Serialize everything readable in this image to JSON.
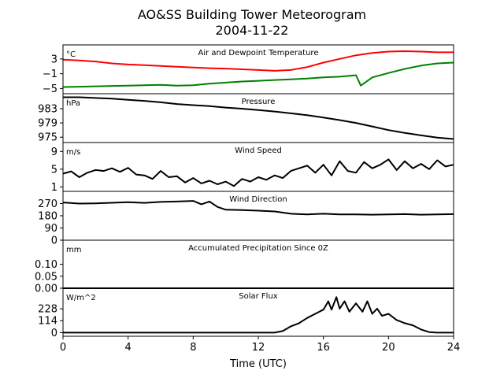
{
  "chart_data": {
    "type": "line",
    "title": "AO&SS Building Tower Meteorogram",
    "subtitle": "2004-11-22",
    "xlabel": "Time (UTC)",
    "xlim": [
      0,
      24
    ],
    "xticks": [
      "0",
      "4",
      "8",
      "12",
      "16",
      "20",
      "24"
    ],
    "panels": [
      {
        "title": "Air and Dewpoint Temperature",
        "unit": "°C",
        "ylim": [
          -6.4,
          6.8
        ],
        "yticks": [
          "3",
          "−1",
          "−5"
        ],
        "ytick_values": [
          3,
          -1,
          -5
        ],
        "series": [
          {
            "color": "#ff0000",
            "x": [
              0,
              1,
              2,
              3,
              4,
              5,
              6,
              7,
              8,
              9,
              10,
              11,
              12,
              13,
              14,
              15,
              16,
              17,
              18,
              19,
              20,
              21,
              22,
              23,
              24
            ],
            "y": [
              2.8,
              2.6,
              2.3,
              1.8,
              1.5,
              1.3,
              1.1,
              0.9,
              0.7,
              0.5,
              0.4,
              0.2,
              0.0,
              -0.2,
              0.0,
              0.8,
              2.0,
              3.0,
              4.0,
              4.6,
              5.0,
              5.1,
              5.0,
              4.8,
              4.8
            ]
          },
          {
            "color": "#008000",
            "x": [
              0,
              1,
              2,
              3,
              4,
              5,
              6,
              7,
              8,
              9,
              10,
              11,
              12,
              13,
              14,
              15,
              16,
              17,
              18,
              18.3,
              19,
              20,
              21,
              22,
              23,
              24
            ],
            "y": [
              -4.6,
              -4.5,
              -4.4,
              -4.3,
              -4.2,
              -4.1,
              -4.0,
              -4.2,
              -4.1,
              -3.7,
              -3.4,
              -3.1,
              -2.9,
              -2.7,
              -2.5,
              -2.3,
              -2.0,
              -1.8,
              -1.4,
              -4.2,
              -2.0,
              -0.8,
              0.3,
              1.2,
              1.8,
              2.0
            ]
          }
        ]
      },
      {
        "title": "Pressure",
        "unit": "hPa",
        "ylim": [
          973.5,
          987.2
        ],
        "yticks": [
          "983",
          "979",
          "975"
        ],
        "ytick_values": [
          983,
          979,
          975
        ],
        "series": [
          {
            "color": "#000000",
            "x": [
              0,
              1,
              2,
              3,
              4,
              5,
              6,
              7,
              8,
              9,
              10,
              11,
              12,
              13,
              14,
              15,
              16,
              17,
              18,
              19,
              20,
              21,
              22,
              23,
              24
            ],
            "y": [
              986.2,
              986.2,
              986.0,
              985.8,
              985.5,
              985.2,
              984.8,
              984.3,
              984.0,
              983.7,
              983.3,
              983.0,
              982.6,
              982.2,
              981.7,
              981.2,
              980.5,
              979.8,
              979.0,
              978.0,
              977.0,
              976.2,
              975.5,
              974.9,
              974.5
            ]
          }
        ]
      },
      {
        "title": "Wind Speed",
        "unit": "m/s",
        "ylim": [
          0,
          11
        ],
        "yticks": [
          "9",
          "5",
          "1"
        ],
        "ytick_values": [
          9,
          5,
          1
        ],
        "series": [
          {
            "color": "#000000",
            "x": [
              0,
              0.5,
              1,
              1.5,
              2,
              2.5,
              3,
              3.5,
              4,
              4.5,
              5,
              5.5,
              6,
              6.5,
              7,
              7.5,
              8,
              8.5,
              9,
              9.5,
              10,
              10.5,
              11,
              11.5,
              12,
              12.5,
              13,
              13.5,
              14,
              14.5,
              15,
              15.5,
              16,
              16.5,
              17,
              17.5,
              18,
              18.5,
              19,
              19.5,
              20,
              20.5,
              21,
              21.5,
              22,
              22.5,
              23,
              23.5,
              24
            ],
            "y": [
              4.0,
              4.5,
              3.2,
              4.2,
              4.8,
              4.6,
              5.2,
              4.4,
              5.3,
              3.8,
              3.6,
              2.8,
              4.6,
              3.2,
              3.4,
              2.0,
              3.0,
              1.8,
              2.4,
              1.6,
              2.2,
              1.2,
              2.8,
              2.2,
              3.2,
              2.6,
              3.6,
              3.0,
              4.6,
              5.2,
              5.8,
              4.2,
              6.0,
              3.6,
              6.8,
              4.6,
              4.2,
              6.6,
              5.2,
              6.0,
              7.2,
              4.8,
              6.8,
              5.2,
              6.2,
              5.0,
              7.0,
              5.6,
              6.0
            ]
          }
        ]
      },
      {
        "title": "Wind Direction",
        "unit": "",
        "ylim": [
          0,
          360
        ],
        "yticks": [
          "270",
          "180",
          "90",
          "0"
        ],
        "ytick_values": [
          270,
          180,
          90,
          0
        ],
        "series": [
          {
            "color": "#000000",
            "x": [
              0,
              1,
              2,
              3,
              4,
              5,
              6,
              7,
              8,
              8.5,
              9,
              9.5,
              10,
              11,
              12,
              13,
              14,
              15,
              16,
              17,
              18,
              19,
              20,
              21,
              22,
              23,
              24
            ],
            "y": [
              278,
              270,
              272,
              276,
              280,
              275,
              282,
              285,
              290,
              265,
              285,
              245,
              225,
              222,
              218,
              212,
              195,
              190,
              195,
              190,
              190,
              188,
              190,
              192,
              188,
              190,
              192
            ]
          }
        ]
      },
      {
        "title": "Accumulated Precipitation Since 0Z",
        "unit": "mm",
        "ylim": [
          0,
          0.2
        ],
        "yticks": [
          "0.10",
          "0.05",
          "0.00"
        ],
        "ytick_values": [
          0.1,
          0.05,
          0.0
        ],
        "series": [
          {
            "color": "#000000",
            "x": [
              0,
              24
            ],
            "y": [
              0,
              0
            ]
          }
        ]
      },
      {
        "title": "Solar Flux",
        "unit": "W/m^2",
        "ylim": [
          -35,
          425
        ],
        "yticks": [
          "228",
          "114",
          "0"
        ],
        "ytick_values": [
          228,
          114,
          0
        ],
        "series": [
          {
            "color": "#000000",
            "x": [
              0,
              13,
              13.5,
              14,
              14.5,
              15,
              15.5,
              16,
              16.3,
              16.5,
              16.8,
              17,
              17.3,
              17.6,
              18,
              18.4,
              18.7,
              19,
              19.3,
              19.6,
              20,
              20.5,
              21,
              21.5,
              22,
              22.5,
              23,
              24
            ],
            "y": [
              0,
              0,
              15,
              60,
              90,
              140,
              180,
              220,
              300,
              220,
              340,
              230,
              300,
              200,
              280,
              200,
              300,
              180,
              230,
              160,
              180,
              120,
              90,
              70,
              30,
              5,
              0,
              0
            ]
          }
        ]
      }
    ]
  }
}
